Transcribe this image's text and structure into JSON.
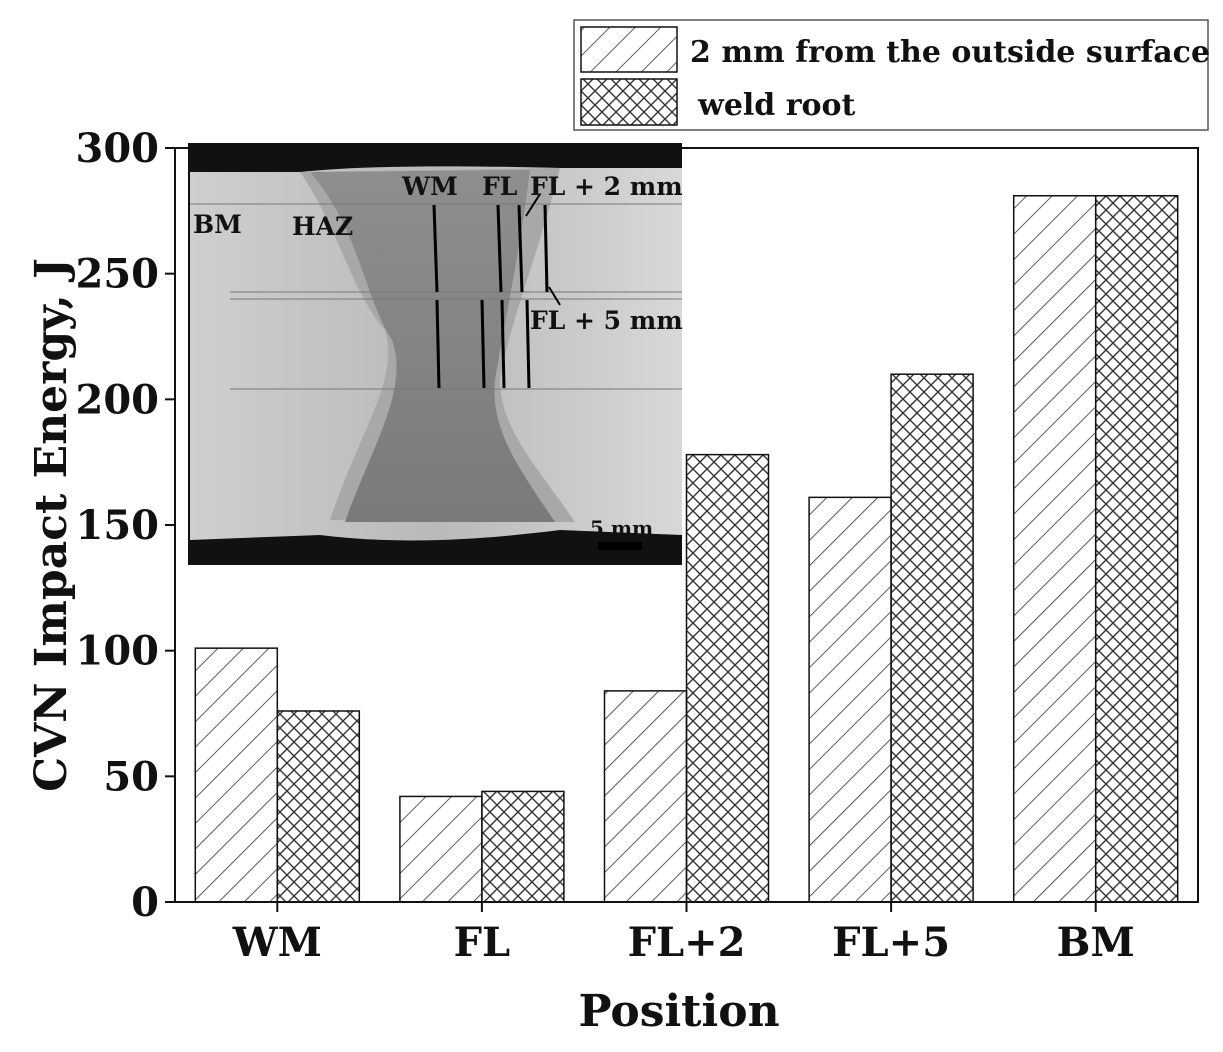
{
  "chart_data": {
    "type": "bar",
    "xlabel": "Position",
    "ylabel": "CVN Impact Energy, J",
    "ylim": [
      0,
      300
    ],
    "yticks": [
      0,
      50,
      100,
      150,
      200,
      250,
      300
    ],
    "categories": [
      "WM",
      "FL",
      "FL+2",
      "FL+5",
      "BM"
    ],
    "series": [
      {
        "name": "2 mm from the outside surface",
        "pattern": "diagonal-hatch",
        "values": [
          101,
          42,
          84,
          161,
          281
        ]
      },
      {
        "name": "weld root",
        "pattern": "cross-hatch",
        "values": [
          76,
          44,
          178,
          210,
          281
        ]
      }
    ],
    "legend_position": "top-right",
    "grid": false
  },
  "inset": {
    "description_free": true,
    "labels": {
      "bm": "BM",
      "haz": "HAZ",
      "wm": "WM",
      "fl": "FL",
      "fl2": "FL + 2 mm",
      "fl5": "FL + 5 mm",
      "scale": "5 mm"
    }
  }
}
